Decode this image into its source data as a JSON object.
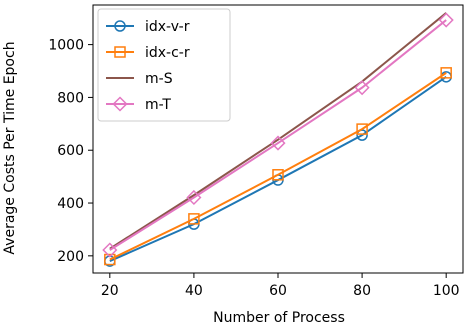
{
  "chart_data": {
    "type": "line",
    "title": "",
    "xlabel": "Number of Process",
    "ylabel": "Average Costs Per Time Epoch",
    "x": [
      20,
      40,
      60,
      80,
      100
    ],
    "xticks": [
      "20",
      "40",
      "60",
      "80",
      "100"
    ],
    "yticks": [
      "200",
      "400",
      "600",
      "800",
      "1000"
    ],
    "xlim": [
      16,
      104
    ],
    "ylim": [
      135,
      1150
    ],
    "grid": false,
    "legend_position": "top-left",
    "series": [
      {
        "name": "idx-v-r",
        "color": "#1f77b4",
        "marker": "circle",
        "values": [
          180,
          320,
          487,
          657,
          878
        ]
      },
      {
        "name": "idx-c-r",
        "color": "#ff7f0e",
        "marker": "square",
        "values": [
          186,
          340,
          507,
          680,
          893
        ]
      },
      {
        "name": "m-S",
        "color": "#8c564b",
        "marker": "none",
        "values": [
          227,
          430,
          640,
          860,
          1120
        ]
      },
      {
        "name": "m-T",
        "color": "#e377c2",
        "marker": "diamond",
        "values": [
          222,
          421,
          627,
          837,
          1093
        ]
      }
    ]
  }
}
